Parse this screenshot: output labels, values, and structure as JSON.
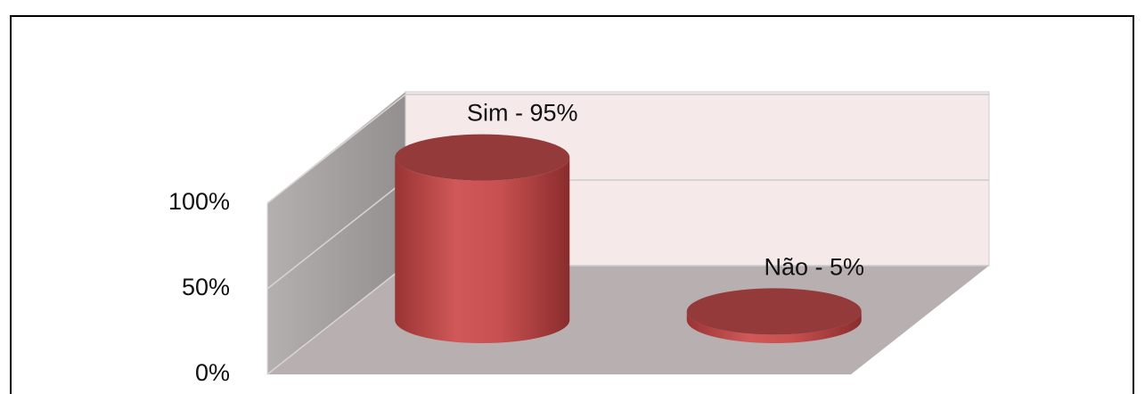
{
  "chart_data": {
    "type": "bar3d",
    "categories": [
      null,
      null
    ],
    "values": [
      95,
      5
    ],
    "value_labels": [
      "Sim - 95%",
      "Não - 5%"
    ],
    "color": "#c84848",
    "ylim": [
      0,
      100
    ],
    "yticks": [
      {
        "value": 0,
        "label": "0%"
      },
      {
        "value": 50,
        "label": "50%"
      },
      {
        "value": 100,
        "label": "100%"
      }
    ],
    "grid": true
  }
}
